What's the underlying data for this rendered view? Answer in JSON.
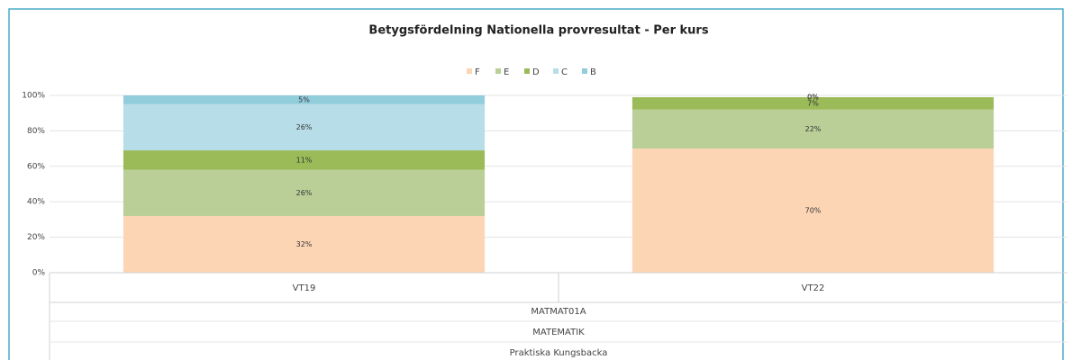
{
  "chart_data": {
    "type": "stacked_bar_100",
    "title": "Betygsfördelning Nationella provresultat - Per kurs",
    "categories": [
      "VT19",
      "VT22"
    ],
    "category_groups": [
      "MATMAT01A",
      "MATEMATIK",
      "Praktiska Kungsbacka"
    ],
    "series": [
      {
        "name": "F",
        "color": "#fcd5b5",
        "values": [
          32,
          70
        ],
        "value_labels": [
          "32%",
          "70%"
        ]
      },
      {
        "name": "E",
        "color": "#bacf97",
        "values": [
          26,
          22
        ],
        "value_labels": [
          "26%",
          "22%"
        ]
      },
      {
        "name": "D",
        "color": "#9bbb59",
        "values": [
          11,
          7
        ],
        "value_labels": [
          "11%",
          "7%"
        ]
      },
      {
        "name": "C",
        "color": "#b7dde8",
        "values": [
          26,
          0
        ],
        "value_labels": [
          "26%",
          "0%"
        ]
      },
      {
        "name": "B",
        "color": "#92cddc",
        "values": [
          5,
          0
        ],
        "value_labels": [
          "5%",
          "0%"
        ]
      }
    ],
    "ylim": [
      0,
      100
    ],
    "yticks": [
      {
        "value": 0,
        "label": "0%"
      },
      {
        "value": 20,
        "label": "20%"
      },
      {
        "value": 40,
        "label": "40%"
      },
      {
        "value": 60,
        "label": "60%"
      },
      {
        "value": 80,
        "label": "80%"
      },
      {
        "value": 100,
        "label": "100%"
      }
    ],
    "grid": true,
    "legend": "top"
  }
}
